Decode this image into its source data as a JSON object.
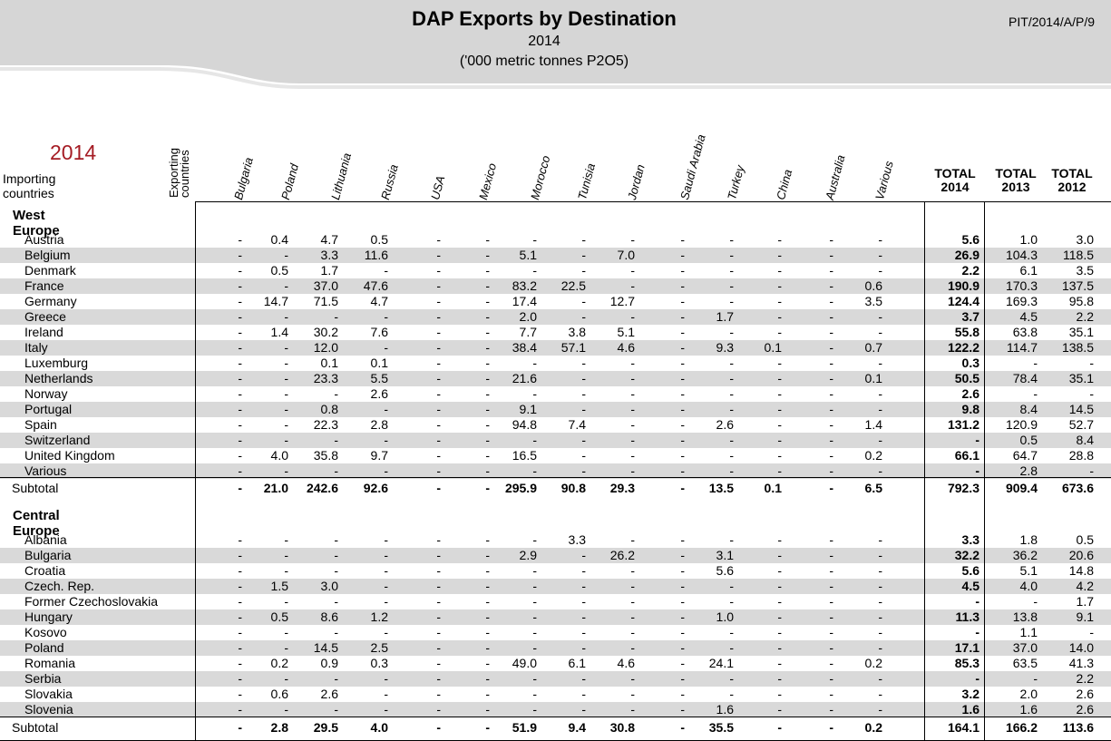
{
  "header": {
    "title": "DAP Exports by Destination",
    "year": "2014",
    "unit": "('000 metric tonnes P2O5)",
    "code": "PIT/2014/A/P/9"
  },
  "table": {
    "year_label": "2014",
    "importing_label": "Importing countries",
    "exporting_label": "Exporting countries",
    "exporters": [
      "Bulgaria",
      "Poland",
      "Lithuania",
      "Russia",
      "USA",
      "Mexico",
      "Morocco",
      "Tunisia",
      "Jordan",
      "Saudi Arabia",
      "Turkey",
      "China",
      "Australia",
      "Various"
    ],
    "totals": [
      "TOTAL 2014",
      "TOTAL 2013",
      "TOTAL 2012"
    ],
    "sections": [
      {
        "name": "West Europe",
        "rows": [
          {
            "c": "Austria",
            "v": [
              "-",
              "0.4",
              "4.7",
              "0.5",
              "-",
              "-",
              "-",
              "-",
              "-",
              "-",
              "-",
              "-",
              "-",
              "-"
            ],
            "t": [
              "5.6",
              "1.0",
              "3.0"
            ]
          },
          {
            "c": "Belgium",
            "v": [
              "-",
              "-",
              "3.3",
              "11.6",
              "-",
              "-",
              "5.1",
              "-",
              "7.0",
              "-",
              "-",
              "-",
              "-",
              "-"
            ],
            "t": [
              "26.9",
              "104.3",
              "118.5"
            ]
          },
          {
            "c": "Denmark",
            "v": [
              "-",
              "0.5",
              "1.7",
              "-",
              "-",
              "-",
              "-",
              "-",
              "-",
              "-",
              "-",
              "-",
              "-",
              "-"
            ],
            "t": [
              "2.2",
              "6.1",
              "3.5"
            ]
          },
          {
            "c": "France",
            "v": [
              "-",
              "-",
              "37.0",
              "47.6",
              "-",
              "-",
              "83.2",
              "22.5",
              "-",
              "-",
              "-",
              "-",
              "-",
              "0.6"
            ],
            "t": [
              "190.9",
              "170.3",
              "137.5"
            ]
          },
          {
            "c": "Germany",
            "v": [
              "-",
              "14.7",
              "71.5",
              "4.7",
              "-",
              "-",
              "17.4",
              "-",
              "12.7",
              "-",
              "-",
              "-",
              "-",
              "3.5"
            ],
            "t": [
              "124.4",
              "169.3",
              "95.8"
            ]
          },
          {
            "c": "Greece",
            "v": [
              "-",
              "-",
              "-",
              "-",
              "-",
              "-",
              "2.0",
              "-",
              "-",
              "-",
              "1.7",
              "-",
              "-",
              "-"
            ],
            "t": [
              "3.7",
              "4.5",
              "2.2"
            ]
          },
          {
            "c": "Ireland",
            "v": [
              "-",
              "1.4",
              "30.2",
              "7.6",
              "-",
              "-",
              "7.7",
              "3.8",
              "5.1",
              "-",
              "-",
              "-",
              "-",
              "-"
            ],
            "t": [
              "55.8",
              "63.8",
              "35.1"
            ]
          },
          {
            "c": "Italy",
            "v": [
              "-",
              "-",
              "12.0",
              "-",
              "-",
              "-",
              "38.4",
              "57.1",
              "4.6",
              "-",
              "9.3",
              "0.1",
              "-",
              "0.7"
            ],
            "t": [
              "122.2",
              "114.7",
              "138.5"
            ]
          },
          {
            "c": "Luxemburg",
            "v": [
              "-",
              "-",
              "0.1",
              "0.1",
              "-",
              "-",
              "-",
              "-",
              "-",
              "-",
              "-",
              "-",
              "-",
              "-"
            ],
            "t": [
              "0.3",
              "-",
              "-"
            ]
          },
          {
            "c": "Netherlands",
            "v": [
              "-",
              "-",
              "23.3",
              "5.5",
              "-",
              "-",
              "21.6",
              "-",
              "-",
              "-",
              "-",
              "-",
              "-",
              "0.1"
            ],
            "t": [
              "50.5",
              "78.4",
              "35.1"
            ]
          },
          {
            "c": "Norway",
            "v": [
              "-",
              "-",
              "-",
              "2.6",
              "-",
              "-",
              "-",
              "-",
              "-",
              "-",
              "-",
              "-",
              "-",
              "-"
            ],
            "t": [
              "2.6",
              "-",
              "-"
            ]
          },
          {
            "c": "Portugal",
            "v": [
              "-",
              "-",
              "0.8",
              "-",
              "-",
              "-",
              "9.1",
              "-",
              "-",
              "-",
              "-",
              "-",
              "-",
              "-"
            ],
            "t": [
              "9.8",
              "8.4",
              "14.5"
            ]
          },
          {
            "c": "Spain",
            "v": [
              "-",
              "-",
              "22.3",
              "2.8",
              "-",
              "-",
              "94.8",
              "7.4",
              "-",
              "-",
              "2.6",
              "-",
              "-",
              "1.4"
            ],
            "t": [
              "131.2",
              "120.9",
              "52.7"
            ]
          },
          {
            "c": "Switzerland",
            "v": [
              "-",
              "-",
              "-",
              "-",
              "-",
              "-",
              "-",
              "-",
              "-",
              "-",
              "-",
              "-",
              "-",
              "-"
            ],
            "t": [
              "-",
              "0.5",
              "8.4"
            ]
          },
          {
            "c": "United Kingdom",
            "v": [
              "-",
              "4.0",
              "35.8",
              "9.7",
              "-",
              "-",
              "16.5",
              "-",
              "-",
              "-",
              "-",
              "-",
              "-",
              "0.2"
            ],
            "t": [
              "66.1",
              "64.7",
              "28.8"
            ]
          },
          {
            "c": "Various",
            "v": [
              "-",
              "-",
              "-",
              "-",
              "-",
              "-",
              "-",
              "-",
              "-",
              "-",
              "-",
              "-",
              "-",
              "-"
            ],
            "t": [
              "-",
              "2.8",
              "-"
            ]
          }
        ],
        "subtotal": {
          "c": "Subtotal",
          "v": [
            "-",
            "21.0",
            "242.6",
            "92.6",
            "-",
            "-",
            "295.9",
            "90.8",
            "29.3",
            "-",
            "13.5",
            "0.1",
            "-",
            "6.5"
          ],
          "t": [
            "792.3",
            "909.4",
            "673.6"
          ]
        }
      },
      {
        "name": "Central Europe",
        "rows": [
          {
            "c": "Albania",
            "v": [
              "-",
              "-",
              "-",
              "-",
              "-",
              "-",
              "-",
              "3.3",
              "-",
              "-",
              "-",
              "-",
              "-",
              "-"
            ],
            "t": [
              "3.3",
              "1.8",
              "0.5"
            ]
          },
          {
            "c": "Bulgaria",
            "v": [
              "-",
              "-",
              "-",
              "-",
              "-",
              "-",
              "2.9",
              "-",
              "26.2",
              "-",
              "3.1",
              "-",
              "-",
              "-"
            ],
            "t": [
              "32.2",
              "36.2",
              "20.6"
            ]
          },
          {
            "c": "Croatia",
            "v": [
              "-",
              "-",
              "-",
              "-",
              "-",
              "-",
              "-",
              "-",
              "-",
              "-",
              "5.6",
              "-",
              "-",
              "-"
            ],
            "t": [
              "5.6",
              "5.1",
              "14.8"
            ]
          },
          {
            "c": "Czech. Rep.",
            "v": [
              "-",
              "1.5",
              "3.0",
              "-",
              "-",
              "-",
              "-",
              "-",
              "-",
              "-",
              "-",
              "-",
              "-",
              "-"
            ],
            "t": [
              "4.5",
              "4.0",
              "4.2"
            ]
          },
          {
            "c": "Former Czechoslovakia",
            "v": [
              "-",
              "-",
              "-",
              "-",
              "-",
              "-",
              "-",
              "-",
              "-",
              "-",
              "-",
              "-",
              "-",
              "-"
            ],
            "t": [
              "-",
              "-",
              "1.7"
            ]
          },
          {
            "c": "Hungary",
            "v": [
              "-",
              "0.5",
              "8.6",
              "1.2",
              "-",
              "-",
              "-",
              "-",
              "-",
              "-",
              "1.0",
              "-",
              "-",
              "-"
            ],
            "t": [
              "11.3",
              "13.8",
              "9.1"
            ]
          },
          {
            "c": "Kosovo",
            "v": [
              "-",
              "-",
              "-",
              "-",
              "-",
              "-",
              "-",
              "-",
              "-",
              "-",
              "-",
              "-",
              "-",
              "-"
            ],
            "t": [
              "-",
              "1.1",
              "-"
            ]
          },
          {
            "c": "Poland",
            "v": [
              "-",
              "-",
              "14.5",
              "2.5",
              "-",
              "-",
              "-",
              "-",
              "-",
              "-",
              "-",
              "-",
              "-",
              "-"
            ],
            "t": [
              "17.1",
              "37.0",
              "14.0"
            ]
          },
          {
            "c": "Romania",
            "v": [
              "-",
              "0.2",
              "0.9",
              "0.3",
              "-",
              "-",
              "49.0",
              "6.1",
              "4.6",
              "-",
              "24.1",
              "-",
              "-",
              "0.2"
            ],
            "t": [
              "85.3",
              "63.5",
              "41.3"
            ]
          },
          {
            "c": "Serbia",
            "v": [
              "-",
              "-",
              "-",
              "-",
              "-",
              "-",
              "-",
              "-",
              "-",
              "-",
              "-",
              "-",
              "-",
              "-"
            ],
            "t": [
              "-",
              "-",
              "2.2"
            ]
          },
          {
            "c": "Slovakia",
            "v": [
              "-",
              "0.6",
              "2.6",
              "-",
              "-",
              "-",
              "-",
              "-",
              "-",
              "-",
              "-",
              "-",
              "-",
              "-"
            ],
            "t": [
              "3.2",
              "2.0",
              "2.6"
            ]
          },
          {
            "c": "Slovenia",
            "v": [
              "-",
              "-",
              "-",
              "-",
              "-",
              "-",
              "-",
              "-",
              "-",
              "-",
              "1.6",
              "-",
              "-",
              "-"
            ],
            "t": [
              "1.6",
              "1.6",
              "2.6"
            ]
          }
        ],
        "subtotal": {
          "c": "Subtotal",
          "v": [
            "-",
            "2.8",
            "29.5",
            "4.0",
            "-",
            "-",
            "51.9",
            "9.4",
            "30.8",
            "-",
            "35.5",
            "-",
            "-",
            "0.2"
          ],
          "t": [
            "164.1",
            "166.2",
            "113.6"
          ]
        }
      }
    ]
  }
}
